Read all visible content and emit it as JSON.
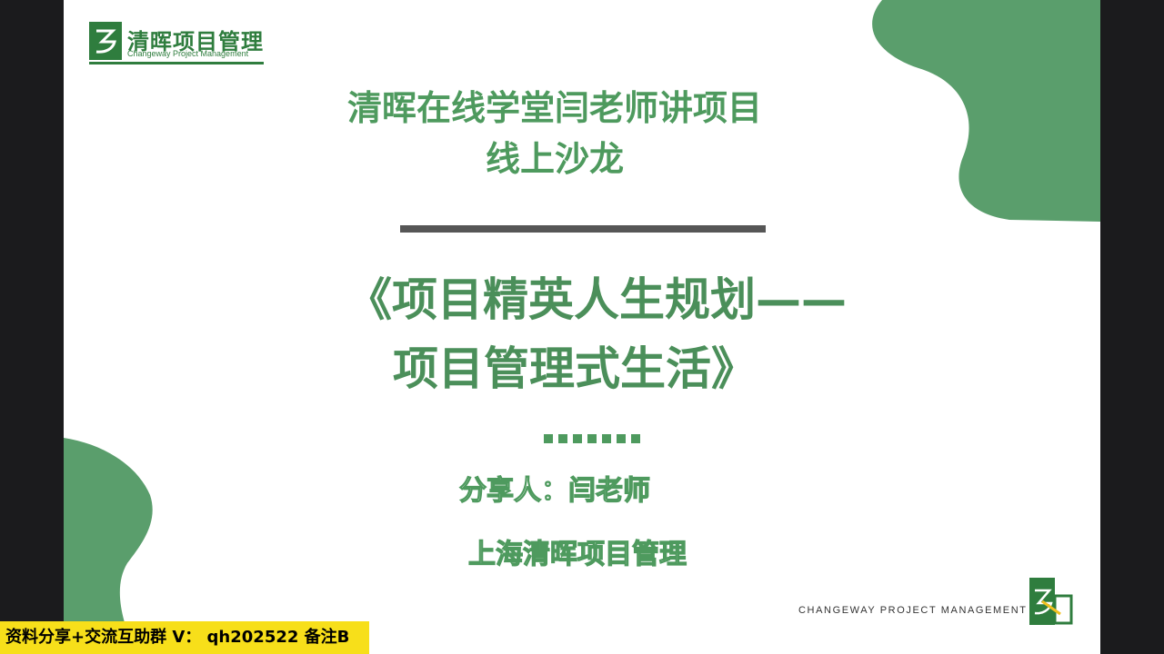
{
  "logo": {
    "name_cn": "清晖项目管理",
    "name_en": "Changeway Project Management"
  },
  "title": {
    "line1": "清晖在线学堂闫老师讲项目",
    "line2": "线上沙龙"
  },
  "subtitle": {
    "line1": "《项目精英人生规划——",
    "line2": "项目管理式生活》"
  },
  "speaker": "分享人：闫老师",
  "company": "上海清晖项目管理",
  "footer": {
    "text": "CHANGEWAY PROJECT MANAGEMENT"
  },
  "watermark": "资料分享+交流互助群 V： qh202522 备注B",
  "colors": {
    "primary_green": "#4e9a5e",
    "dark_green": "#2f7d3e",
    "watermark_bg": "#f7df1a"
  }
}
